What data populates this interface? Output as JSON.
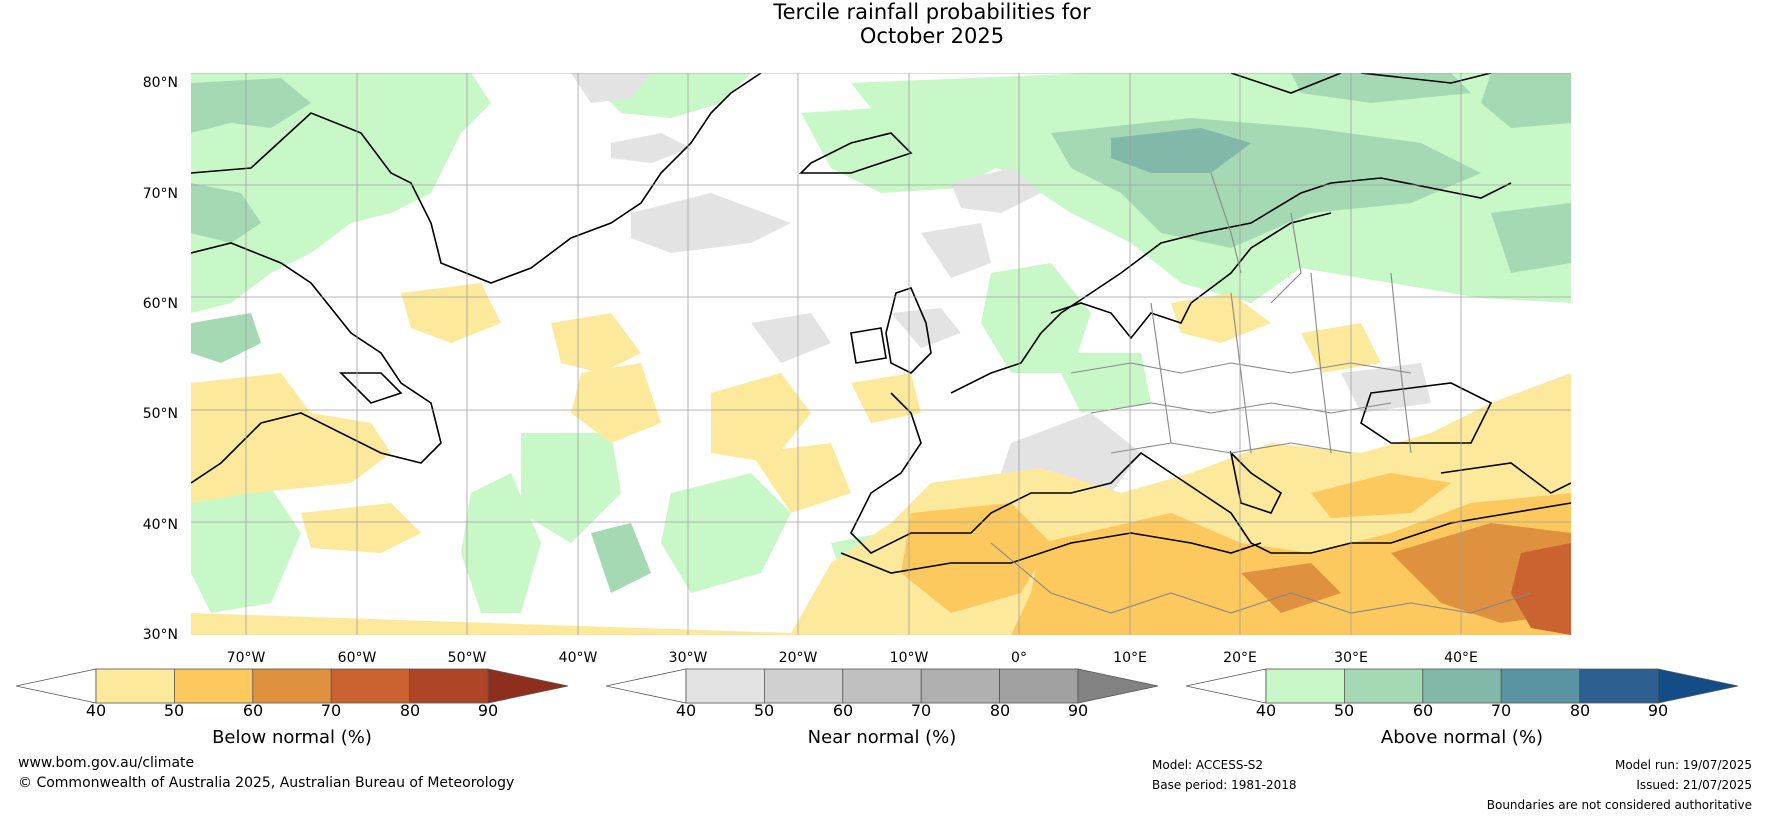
{
  "title_line1": "Tercile rainfall probabilities for",
  "title_line2": "October 2025",
  "lat_labels": [
    "80°N",
    "70°N",
    "60°N",
    "50°N",
    "40°N",
    "30°N"
  ],
  "lon_labels": [
    "70°W",
    "60°W",
    "50°W",
    "40°W",
    "30°W",
    "20°W",
    "10°W",
    "0°",
    "10°E",
    "20°E",
    "30°E",
    "40°E"
  ],
  "colorbars": [
    {
      "title": "Below normal (%)",
      "ticks": [
        "40",
        "50",
        "60",
        "70",
        "80",
        "90"
      ],
      "colors": [
        "#ffffff",
        "#fde99b",
        "#fdc95f",
        "#e0913f",
        "#cb6330",
        "#ad4526",
        "#8e2f1d"
      ]
    },
    {
      "title": "Near normal (%)",
      "ticks": [
        "40",
        "50",
        "60",
        "70",
        "80",
        "90"
      ],
      "colors": [
        "#ffffff",
        "#e3e3e3",
        "#d0d0d0",
        "#c0c0c0",
        "#b0b0b0",
        "#a0a0a0",
        "#828282"
      ]
    },
    {
      "title": "Above normal (%)",
      "ticks": [
        "40",
        "50",
        "60",
        "70",
        "80",
        "90"
      ],
      "colors": [
        "#ffffff",
        "#c8f8c8",
        "#a4d9b4",
        "#82b8aa",
        "#5a93a2",
        "#2e5f91",
        "#144d85"
      ]
    }
  ],
  "footer": {
    "website": "www.bom.gov.au/climate",
    "copyright": "© Commonwealth of Australia 2025, Australian Bureau of Meteorology",
    "model": "Model: ACCESS-S2",
    "base_period": "Base period: 1981-2018",
    "model_run": "Model run: 19/07/2025",
    "issued": "Issued: 21/07/2025",
    "disclaimer": "Boundaries are not considered authoritative"
  },
  "map": {
    "lat_range": [
      30,
      80
    ],
    "lon_range": [
      -75,
      50
    ],
    "projection": "plate carree",
    "gridlines": true
  }
}
